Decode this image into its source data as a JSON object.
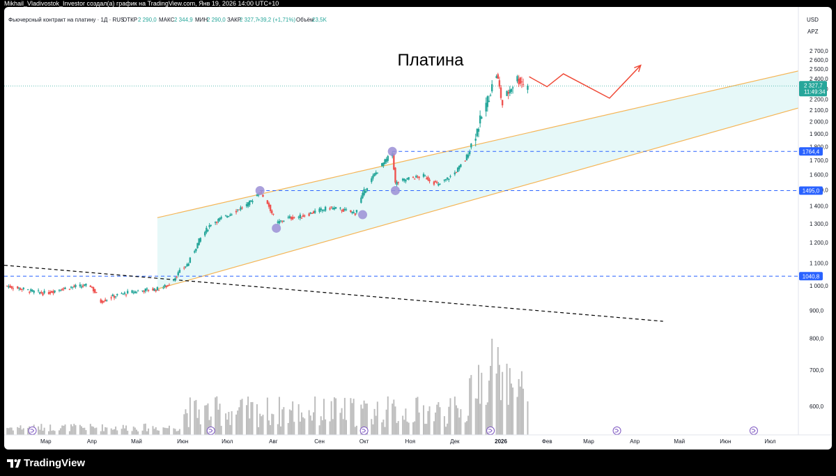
{
  "topbar": {
    "caption": "Mikhail_Vladivostok_Investor создал(а) график на TradingView.com, Янв 19, 2026 14:00 UTC+10"
  },
  "header": {
    "symbol": "Фьючерсный контракт на платину · 1Д · RUS",
    "open_label": "ОТКР",
    "open_value": "2 290,0",
    "high_label": "МАКС",
    "high_value": "2 344,9",
    "low_label": "МИН",
    "low_value": "2 290,0",
    "close_label": "ЗАКР",
    "close_value": "2 327,7",
    "change": "+39,2 (+1,71%)",
    "volume_label": "Объём",
    "volume_value": "23,5K"
  },
  "currency": "USD",
  "scale_mode": "APZ",
  "annotation_title": "Платина",
  "price_tag": {
    "value": "2 327,7",
    "timer": "11:49:34"
  },
  "level_tags": [
    "1764,4",
    "1495,0",
    "1040,8"
  ],
  "branding": {
    "logo_text": "TradingView"
  },
  "colors": {
    "up": "#26a69a",
    "down": "#ef5350",
    "channel_line": "#f5b556",
    "channel_fill": "#e6f8f8",
    "level_line": "#2962ff",
    "level_tag": "#2962ff",
    "projection": "#ef4a37",
    "pivot_marker": "#9b8fd6",
    "volume": "#bdbdbd",
    "price_tag": "#26a69a",
    "trendline": "#000000"
  },
  "chart_data": {
    "type": "candlestick",
    "title": "Платина",
    "y_axis": {
      "min": 560,
      "max": 2760,
      "scale": "log",
      "ticks": [
        600,
        700,
        800,
        900,
        1000,
        1100,
        1200,
        1300,
        1400,
        1500,
        1600,
        1700,
        1800,
        1900,
        2000,
        2100,
        2200,
        2300,
        2400,
        2500,
        2600,
        2700
      ],
      "tick_labels": [
        "600,0",
        "700,0",
        "800,0",
        "900,0",
        "1 000,0",
        "1 100,0",
        "1 200,0",
        "1 300,0",
        "1 400,0",
        "1 500,0",
        "1 600,0",
        "1 700,0",
        "1 800,0",
        "1 900,0",
        "2 000,0",
        "2 100,0",
        "2 200,0",
        "2 300,0",
        "2 400,0",
        "2 500,0",
        "2 600,0",
        "2 700,0"
      ]
    },
    "x_axis": {
      "start": "2025-02-01",
      "end": "2026-07-20",
      "ticks": [
        {
          "date": "2025-03-01",
          "label": "Мар"
        },
        {
          "date": "2025-04-01",
          "label": "Апр"
        },
        {
          "date": "2025-05-01",
          "label": "Май"
        },
        {
          "date": "2025-06-01",
          "label": "Июн"
        },
        {
          "date": "2025-07-01",
          "label": "Июл"
        },
        {
          "date": "2025-08-01",
          "label": "Авг"
        },
        {
          "date": "2025-09-01",
          "label": "Сен"
        },
        {
          "date": "2025-10-01",
          "label": "Окт"
        },
        {
          "date": "2025-11-01",
          "label": "Ноя"
        },
        {
          "date": "2025-12-01",
          "label": "Дек"
        },
        {
          "date": "2026-01-01",
          "label": "2026"
        },
        {
          "date": "2026-02-01",
          "label": "Фев"
        },
        {
          "date": "2026-03-01",
          "label": "Мар"
        },
        {
          "date": "2026-04-01",
          "label": "Апр"
        },
        {
          "date": "2026-05-01",
          "label": "Май"
        },
        {
          "date": "2026-06-01",
          "label": "Июн"
        },
        {
          "date": "2026-07-01",
          "label": "Июл"
        }
      ]
    },
    "close_path": [
      {
        "date": "2025-02-01",
        "close": 1000
      },
      {
        "date": "2025-02-10",
        "close": 990
      },
      {
        "date": "2025-02-20",
        "close": 975
      },
      {
        "date": "2025-03-01",
        "close": 968
      },
      {
        "date": "2025-03-10",
        "close": 985
      },
      {
        "date": "2025-03-20",
        "close": 995
      },
      {
        "date": "2025-03-31",
        "close": 1000
      },
      {
        "date": "2025-04-07",
        "close": 935
      },
      {
        "date": "2025-04-15",
        "close": 955
      },
      {
        "date": "2025-04-25",
        "close": 970
      },
      {
        "date": "2025-05-05",
        "close": 980
      },
      {
        "date": "2025-05-15",
        "close": 985
      },
      {
        "date": "2025-05-22",
        "close": 1000
      },
      {
        "date": "2025-05-30",
        "close": 1060
      },
      {
        "date": "2025-06-05",
        "close": 1100
      },
      {
        "date": "2025-06-12",
        "close": 1210
      },
      {
        "date": "2025-06-20",
        "close": 1300
      },
      {
        "date": "2025-06-30",
        "close": 1340
      },
      {
        "date": "2025-07-08",
        "close": 1380
      },
      {
        "date": "2025-07-15",
        "close": 1410
      },
      {
        "date": "2025-07-23",
        "close": 1490
      },
      {
        "date": "2025-07-28",
        "close": 1420
      },
      {
        "date": "2025-08-03",
        "close": 1300
      },
      {
        "date": "2025-08-10",
        "close": 1330
      },
      {
        "date": "2025-08-20",
        "close": 1340
      },
      {
        "date": "2025-08-30",
        "close": 1370
      },
      {
        "date": "2025-09-08",
        "close": 1390
      },
      {
        "date": "2025-09-15",
        "close": 1380
      },
      {
        "date": "2025-09-25",
        "close": 1360
      },
      {
        "date": "2025-10-01",
        "close": 1490
      },
      {
        "date": "2025-10-08",
        "close": 1600
      },
      {
        "date": "2025-10-14",
        "close": 1680
      },
      {
        "date": "2025-10-20",
        "close": 1750
      },
      {
        "date": "2025-10-22",
        "close": 1540
      },
      {
        "date": "2025-10-30",
        "close": 1570
      },
      {
        "date": "2025-11-10",
        "close": 1590
      },
      {
        "date": "2025-11-20",
        "close": 1530
      },
      {
        "date": "2025-11-30",
        "close": 1600
      },
      {
        "date": "2025-12-08",
        "close": 1700
      },
      {
        "date": "2025-12-15",
        "close": 1900
      },
      {
        "date": "2025-12-22",
        "close": 2150
      },
      {
        "date": "2025-12-29",
        "close": 2450
      },
      {
        "date": "2026-01-02",
        "close": 2150
      },
      {
        "date": "2026-01-07",
        "close": 2300
      },
      {
        "date": "2026-01-12",
        "close": 2400
      },
      {
        "date": "2026-01-19",
        "close": 2327.7
      }
    ],
    "events": [
      {
        "date": "2025-02-20"
      },
      {
        "date": "2025-06-20"
      },
      {
        "date": "2025-10-01"
      },
      {
        "date": "2025-12-25"
      },
      {
        "date": "2026-03-20"
      },
      {
        "date": "2026-06-20"
      }
    ],
    "pivots": [
      {
        "date": "2025-07-23",
        "price": 1495
      },
      {
        "date": "2025-08-03",
        "price": 1275
      },
      {
        "date": "2025-09-30",
        "price": 1350
      },
      {
        "date": "2025-10-20",
        "price": 1764.4
      },
      {
        "date": "2025-10-22",
        "price": 1495
      }
    ],
    "levels": [
      {
        "price": 1764.4,
        "from": "2025-10-20"
      },
      {
        "price": 1495,
        "from": "2025-07-23"
      },
      {
        "price": 1040.8,
        "from": "2025-02-01"
      }
    ],
    "channel": {
      "upper": [
        {
          "date": "2025-05-15",
          "price": 1333
        },
        {
          "date": "2026-07-20",
          "price": 2480
        }
      ],
      "lower": [
        {
          "date": "2025-05-15",
          "price": 986
        },
        {
          "date": "2026-07-20",
          "price": 2120
        }
      ]
    },
    "trendline": [
      {
        "date": "2025-02-01",
        "price": 1090
      },
      {
        "date": "2026-04-20",
        "price": 860
      }
    ],
    "projection": [
      {
        "date": "2026-01-20",
        "price": 2420
      },
      {
        "date": "2026-02-01",
        "price": 2320
      },
      {
        "date": "2026-02-12",
        "price": 2450
      },
      {
        "date": "2026-03-15",
        "price": 2210
      },
      {
        "date": "2026-04-05",
        "price": 2540
      }
    ],
    "projection_arrow": {
      "date": "2026-04-05",
      "price": 2540
    }
  }
}
